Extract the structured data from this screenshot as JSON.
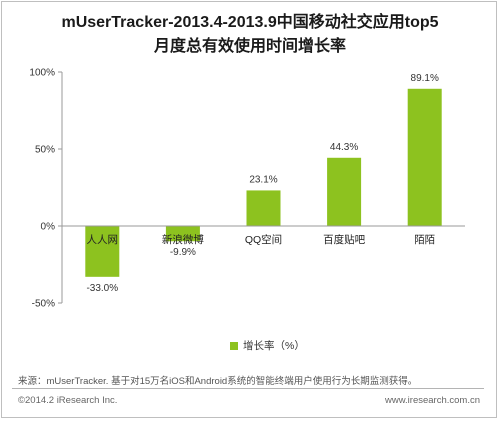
{
  "title_line1": "mUserTracker-2013.4-2013.9中国移动社交应用top5",
  "title_line2": "月度总有效使用时间增长率",
  "chart_data": {
    "type": "bar",
    "title": "mUserTracker-2013.4-2013.9中国移动社交应用top5 月度总有效使用时间增长率",
    "categories": [
      "人人网",
      "新浪微博",
      "QQ空间",
      "百度贴吧",
      "陌陌"
    ],
    "series": [
      {
        "name": "增长率（%）",
        "values": [
          -33.0,
          -9.9,
          23.1,
          44.3,
          89.1
        ]
      }
    ],
    "data_labels": [
      "-33.0%",
      "-9.9%",
      "23.1%",
      "44.3%",
      "89.1%"
    ],
    "ylim": [
      -50,
      100
    ],
    "y_ticks": [
      -50,
      0,
      50,
      100
    ],
    "y_tick_labels": [
      "-50%",
      "0%",
      "50%",
      "100%"
    ],
    "color": "#8dc21f",
    "legend_position": "bottom",
    "grid": false
  },
  "legend_label": "增长率（%）",
  "source_text": "来源：mUserTracker. 基于对15万名iOS和Android系统的智能终端用户使用行为长期监测获得。",
  "copyright_text": "©2014.2 iResearch Inc.",
  "site_text": "www.iresearch.com.cn"
}
